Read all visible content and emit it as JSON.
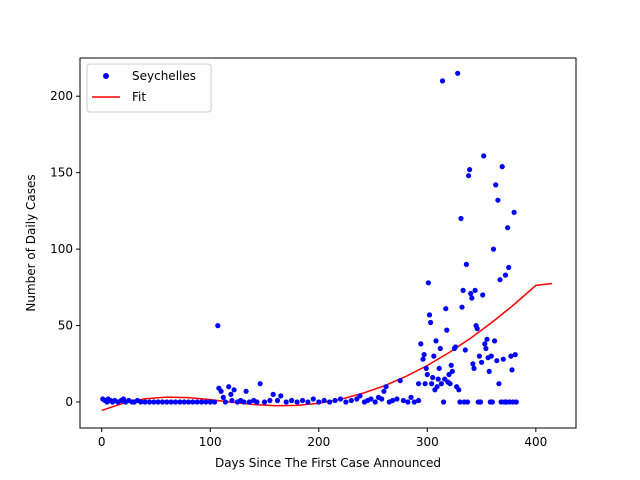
{
  "chart_data": {
    "type": "scatter",
    "xlabel": "Days Since The First Case Announced",
    "ylabel": "Number of Daily Cases",
    "xlim": [
      -20,
      437
    ],
    "ylim": [
      -17,
      225
    ],
    "xticks": [
      0,
      100,
      200,
      300,
      400
    ],
    "yticks": [
      0,
      50,
      100,
      150,
      200
    ],
    "grid": false,
    "legend_position": "top-left",
    "colors": {
      "points": "#0000ff",
      "fit": "#ff0000"
    },
    "series": [
      {
        "name": "Seychelles",
        "kind": "points",
        "points": [
          [
            1,
            2
          ],
          [
            3,
            1
          ],
          [
            5,
            0
          ],
          [
            6,
            2
          ],
          [
            8,
            1
          ],
          [
            10,
            0
          ],
          [
            12,
            1
          ],
          [
            15,
            0
          ],
          [
            18,
            1
          ],
          [
            20,
            2
          ],
          [
            22,
            0
          ],
          [
            25,
            1
          ],
          [
            28,
            0
          ],
          [
            30,
            0
          ],
          [
            33,
            1
          ],
          [
            36,
            0
          ],
          [
            40,
            0
          ],
          [
            44,
            0
          ],
          [
            48,
            0
          ],
          [
            52,
            0
          ],
          [
            56,
            0
          ],
          [
            60,
            0
          ],
          [
            64,
            0
          ],
          [
            68,
            0
          ],
          [
            72,
            0
          ],
          [
            76,
            0
          ],
          [
            80,
            0
          ],
          [
            84,
            0
          ],
          [
            88,
            0
          ],
          [
            92,
            0
          ],
          [
            96,
            0
          ],
          [
            100,
            0
          ],
          [
            104,
            0
          ],
          [
            107,
            50
          ],
          [
            108,
            9
          ],
          [
            110,
            7
          ],
          [
            112,
            3
          ],
          [
            114,
            0
          ],
          [
            117,
            10
          ],
          [
            119,
            5
          ],
          [
            120,
            1
          ],
          [
            122,
            8
          ],
          [
            125,
            0
          ],
          [
            128,
            1
          ],
          [
            131,
            0
          ],
          [
            133,
            7
          ],
          [
            136,
            0
          ],
          [
            140,
            1
          ],
          [
            143,
            0
          ],
          [
            146,
            12
          ],
          [
            150,
            0
          ],
          [
            155,
            1
          ],
          [
            158,
            5
          ],
          [
            162,
            1
          ],
          [
            165,
            4
          ],
          [
            170,
            0
          ],
          [
            175,
            1
          ],
          [
            180,
            0
          ],
          [
            185,
            1
          ],
          [
            190,
            0
          ],
          [
            195,
            2
          ],
          [
            200,
            0
          ],
          [
            205,
            1
          ],
          [
            210,
            0
          ],
          [
            215,
            1
          ],
          [
            220,
            2
          ],
          [
            225,
            0
          ],
          [
            230,
            1
          ],
          [
            235,
            2
          ],
          [
            238,
            4
          ],
          [
            242,
            0
          ],
          [
            245,
            1
          ],
          [
            248,
            2
          ],
          [
            252,
            0
          ],
          [
            255,
            3
          ],
          [
            258,
            2
          ],
          [
            260,
            7
          ],
          [
            262,
            10
          ],
          [
            265,
            0
          ],
          [
            268,
            1
          ],
          [
            272,
            2
          ],
          [
            275,
            14
          ],
          [
            278,
            1
          ],
          [
            282,
            0
          ],
          [
            285,
            3
          ],
          [
            288,
            0
          ],
          [
            292,
            1
          ],
          [
            292,
            12
          ],
          [
            294,
            38
          ],
          [
            296,
            28
          ],
          [
            297,
            31
          ],
          [
            298,
            12
          ],
          [
            299,
            22
          ],
          [
            300,
            18
          ],
          [
            301,
            78
          ],
          [
            302,
            57
          ],
          [
            303,
            52
          ],
          [
            304,
            12
          ],
          [
            305,
            16
          ],
          [
            306,
            30
          ],
          [
            307,
            8
          ],
          [
            308,
            40
          ],
          [
            309,
            10
          ],
          [
            310,
            15
          ],
          [
            311,
            22
          ],
          [
            312,
            35
          ],
          [
            313,
            12
          ],
          [
            314,
            210
          ],
          [
            315,
            0
          ],
          [
            316,
            15
          ],
          [
            317,
            61
          ],
          [
            318,
            47
          ],
          [
            319,
            13
          ],
          [
            320,
            18
          ],
          [
            321,
            12
          ],
          [
            322,
            24
          ],
          [
            323,
            20
          ],
          [
            325,
            35
          ],
          [
            326,
            36
          ],
          [
            327,
            10
          ],
          [
            328,
            215
          ],
          [
            329,
            8
          ],
          [
            330,
            0
          ],
          [
            331,
            120
          ],
          [
            332,
            62
          ],
          [
            333,
            73
          ],
          [
            334,
            0
          ],
          [
            335,
            34
          ],
          [
            336,
            90
          ],
          [
            337,
            0
          ],
          [
            338,
            148
          ],
          [
            339,
            152
          ],
          [
            340,
            71
          ],
          [
            341,
            68
          ],
          [
            342,
            25
          ],
          [
            343,
            22
          ],
          [
            344,
            73
          ],
          [
            345,
            50
          ],
          [
            346,
            48
          ],
          [
            347,
            0
          ],
          [
            348,
            30
          ],
          [
            349,
            0
          ],
          [
            350,
            26
          ],
          [
            351,
            70
          ],
          [
            352,
            161
          ],
          [
            353,
            38
          ],
          [
            354,
            35
          ],
          [
            355,
            41
          ],
          [
            356,
            29
          ],
          [
            357,
            20
          ],
          [
            358,
            0
          ],
          [
            359,
            30
          ],
          [
            360,
            0
          ],
          [
            361,
            100
          ],
          [
            362,
            40
          ],
          [
            363,
            142
          ],
          [
            364,
            27
          ],
          [
            365,
            132
          ],
          [
            366,
            12
          ],
          [
            367,
            80
          ],
          [
            368,
            0
          ],
          [
            369,
            154
          ],
          [
            370,
            28
          ],
          [
            371,
            0
          ],
          [
            372,
            83
          ],
          [
            373,
            0
          ],
          [
            374,
            114
          ],
          [
            375,
            88
          ],
          [
            376,
            0
          ],
          [
            377,
            30
          ],
          [
            378,
            21
          ],
          [
            379,
            0
          ],
          [
            380,
            124
          ],
          [
            381,
            31
          ],
          [
            382,
            0
          ]
        ]
      },
      {
        "name": "Fit",
        "kind": "line",
        "x": [
          0,
          20,
          40,
          60,
          80,
          100,
          120,
          140,
          160,
          180,
          200,
          220,
          240,
          260,
          280,
          300,
          320,
          340,
          360,
          380,
          400,
          415
        ],
        "y": [
          -5.5,
          -0.8,
          2.1,
          3.2,
          2.9,
          1.6,
          -0.1,
          -1.6,
          -2.4,
          -2.2,
          -0.8,
          1.8,
          5.6,
          10.5,
          16.6,
          23.9,
          32.3,
          41.8,
          52.3,
          63.8,
          76.3,
          77.5
        ]
      }
    ]
  }
}
